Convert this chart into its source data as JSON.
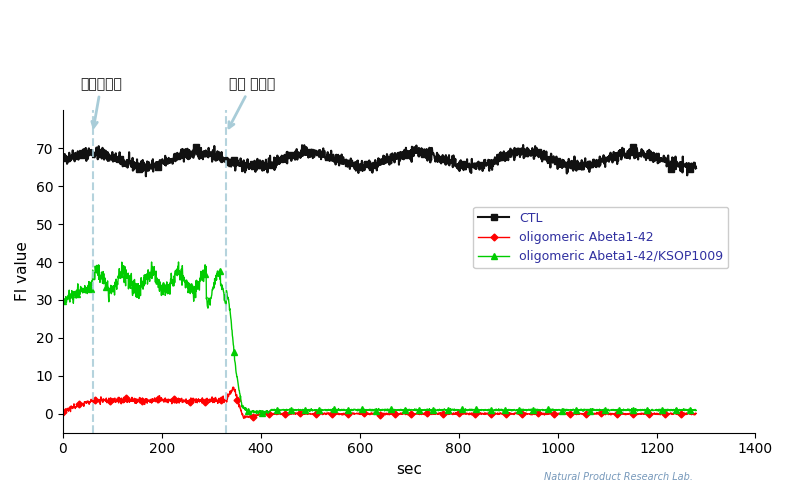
{
  "title": "",
  "xlabel": "sec",
  "ylabel": "FI value",
  "xlim": [
    0,
    1400
  ],
  "ylim": [
    -5,
    80
  ],
  "xticks": [
    0,
    200,
    400,
    600,
    800,
    1000,
    1200,
    1400
  ],
  "yticks": [
    0,
    10,
    20,
    30,
    40,
    50,
    60,
    70
  ],
  "vline1_x": 60,
  "vline2_x": 330,
  "vline1_label": "약물처리후",
  "vline2_label": "약물 제거후",
  "arrow_color": "#a8ccd8",
  "vline_color": "#a8ccd8",
  "ctl_color": "#111111",
  "red_color": "#ff0000",
  "green_color": "#00cc00",
  "legend_color": "#3030a0",
  "legend_labels": [
    "CTL",
    "oligomeric Abeta1-42",
    "oligomeric Abeta1-42/KSOP1009"
  ],
  "watermark": "Natural Product Research Lab.",
  "background_color": "#ffffff",
  "seed": 42
}
